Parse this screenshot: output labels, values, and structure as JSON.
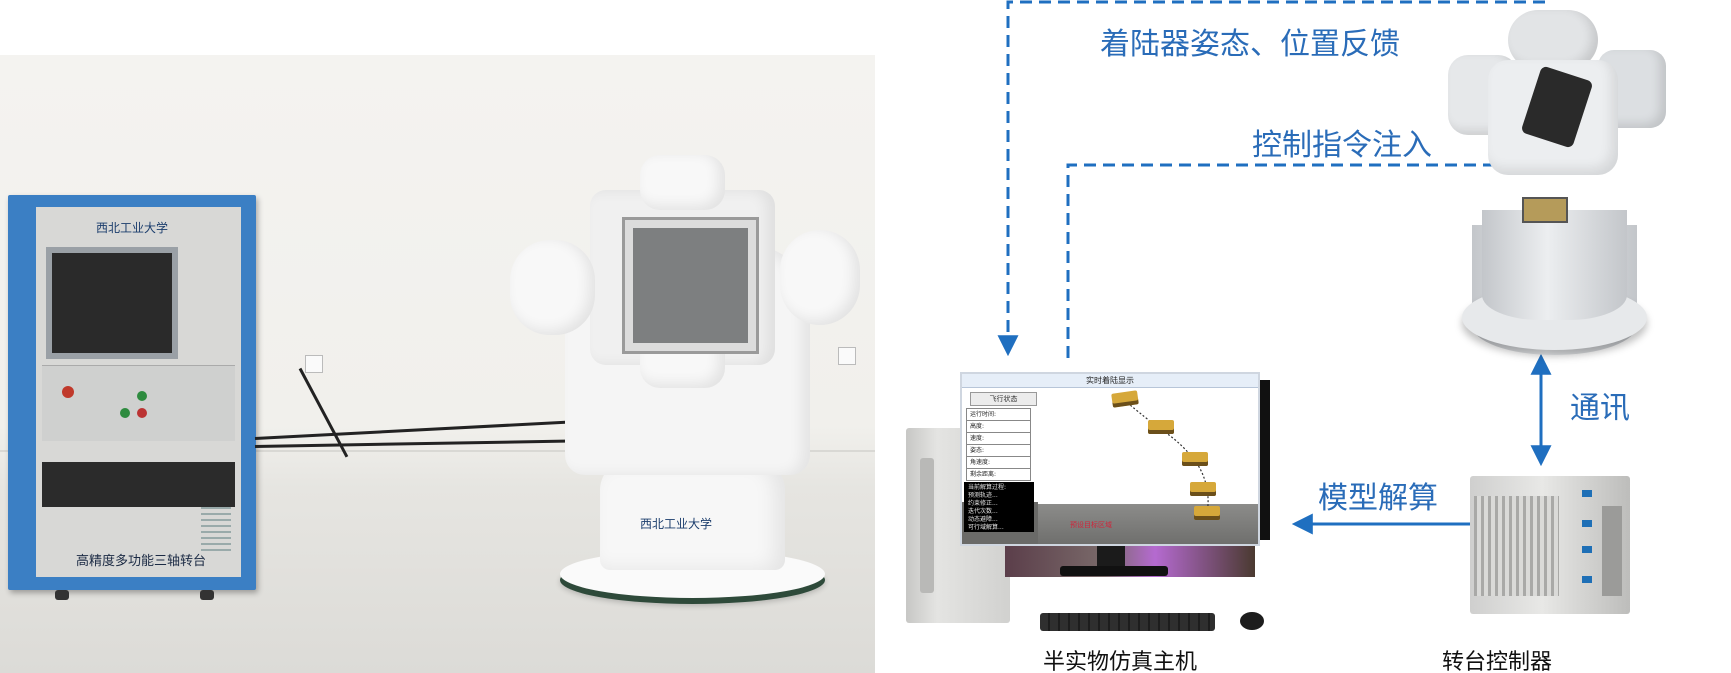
{
  "photo": {
    "cabinet_label": "高精度多功能三轴转台",
    "cabinet_logo": "西北工业大学",
    "gimbal_logo": "西北工业大学"
  },
  "diagram": {
    "labels": {
      "feedback": "着陆器姿态、位置反馈",
      "command": "控制指令注入",
      "comm": "通讯",
      "model": "模型解算"
    },
    "captions": {
      "host": "半实物仿真主机",
      "controller": "转台控制器"
    },
    "screen": {
      "window_title": "实时着陆显示",
      "status_header": "飞行状态",
      "status_rows": [
        "运行时间:",
        "高度:",
        "速度:",
        "姿态:",
        "角速度:",
        "剩余距离:"
      ],
      "console_lines": [
        "当前解算过程:",
        "预测轨迹...",
        "约束修正...",
        "迭代次数...",
        "动态避障...",
        "可行域解算..."
      ],
      "target_label": "预设目标区域"
    },
    "colors": {
      "arrow": "#1f6fc0",
      "label": "#2a6cb8"
    }
  }
}
